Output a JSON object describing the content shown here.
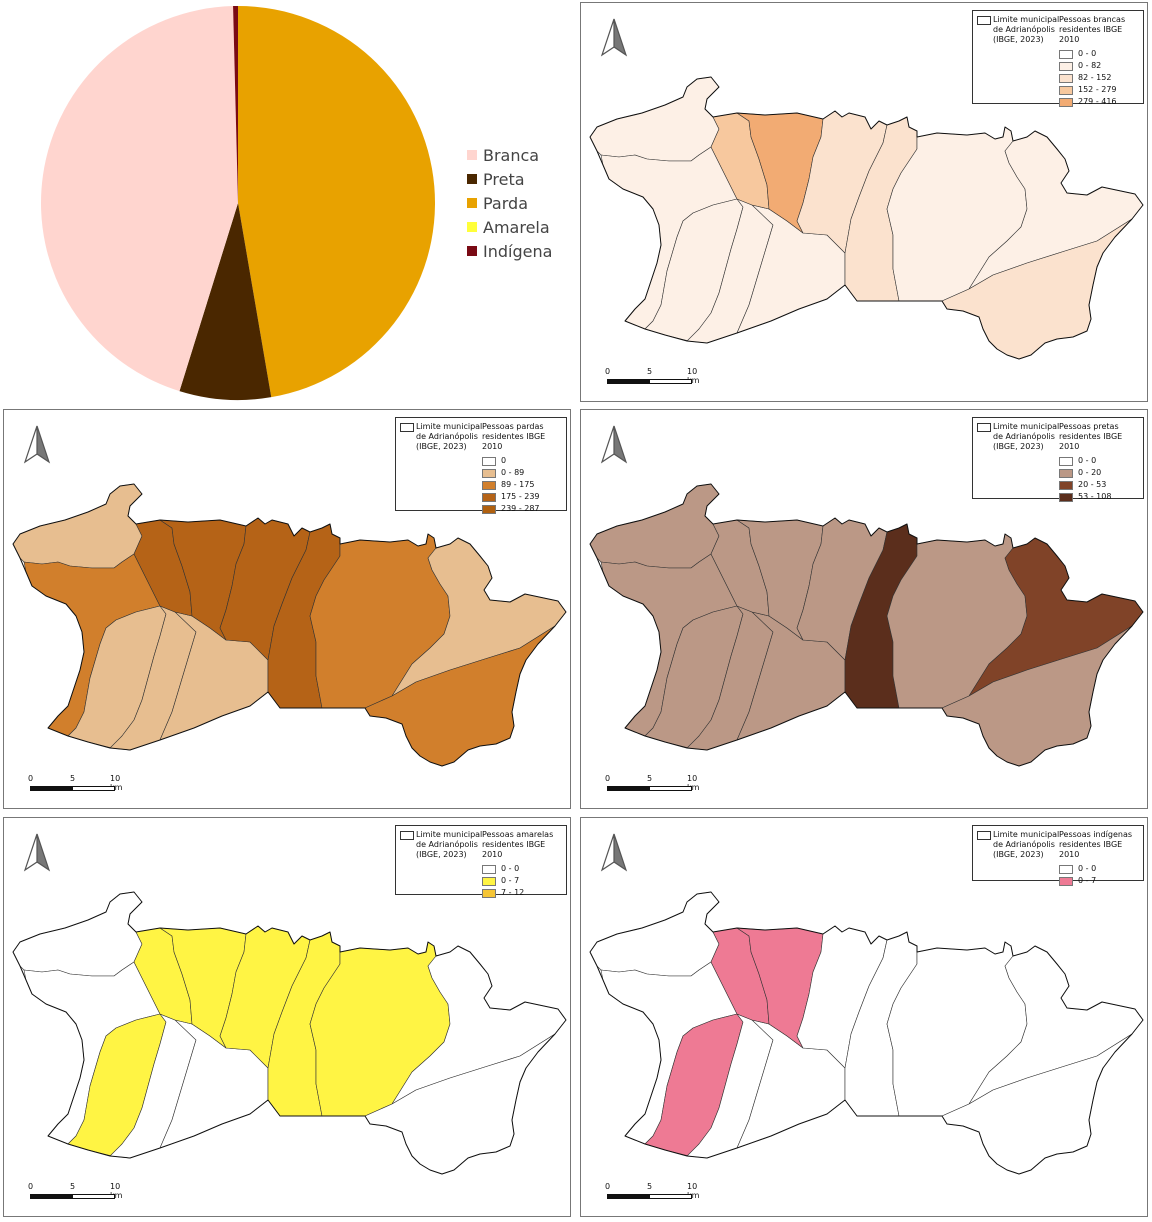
{
  "chart_data": {
    "type": "pie",
    "legend_position": "right",
    "series": [
      {
        "name": "Branca",
        "value": 44.8,
        "color": "#FFD5CF"
      },
      {
        "name": "Preta",
        "value": 7.5,
        "color": "#4A2700"
      },
      {
        "name": "Parda",
        "value": 47.3,
        "color": "#E8A200"
      },
      {
        "name": "Amarela",
        "value": 0.0,
        "color": "#FFFF3A"
      },
      {
        "name": "Indígena",
        "value": 0.4,
        "color": "#7A0A14"
      }
    ]
  },
  "maps": [
    {
      "id": "brancas",
      "limit_label": "Limite municipal\nde Adrianópolis\n(IBGE, 2023)",
      "title": "Pessoas brancas\nresidentes IBGE 2010",
      "classes": [
        {
          "label": "0 - 0",
          "color": "#FFFFFF"
        },
        {
          "label": "0 - 82",
          "color": "#FDF0E6"
        },
        {
          "label": "82 - 152",
          "color": "#FBE2CE"
        },
        {
          "label": "152 - 279",
          "color": "#F7C89E"
        },
        {
          "label": "279 - 416",
          "color": "#F2AB73"
        }
      ],
      "scale": {
        "labels": [
          "0",
          "5",
          "10 km"
        ]
      }
    },
    {
      "id": "pardas",
      "limit_label": "Limite municipal\nde Adrianópolis\n(IBGE, 2023)",
      "title": "Pessoas pardas\nresidentes IBGE 2010",
      "classes": [
        {
          "label": "0",
          "color": "#FFFFFF"
        },
        {
          "label": "0 - 89",
          "color": "#E7BE90"
        },
        {
          "label": "89 - 175",
          "color": "#D17F2C"
        },
        {
          "label": "175 - 239",
          "color": "#B56317"
        },
        {
          "label": "239 - 287",
          "color": "#B0600F"
        }
      ],
      "scale": {
        "labels": [
          "0",
          "5",
          "10 km"
        ]
      }
    },
    {
      "id": "pretas",
      "limit_label": "Limite municipal\nde Adrianópolis\n(IBGE, 2023)",
      "title": "Pessoas pretas\nresidentes IBGE 2010",
      "classes": [
        {
          "label": "0 - 0",
          "color": "#FFFFFF"
        },
        {
          "label": "0 - 20",
          "color": "#BB9886"
        },
        {
          "label": "20 - 53",
          "color": "#804328"
        },
        {
          "label": "53 - 108",
          "color": "#5B2E1C"
        }
      ],
      "scale": {
        "labels": [
          "0",
          "5",
          "10 km"
        ]
      }
    },
    {
      "id": "amarelas",
      "limit_label": "Limite municipal\nde Adrianópolis\n(IBGE, 2023)",
      "title": "Pessoas amarelas\nresidentes IBGE 2010",
      "classes": [
        {
          "label": "0 - 0",
          "color": "#FFFFFF"
        },
        {
          "label": "0 - 7",
          "color": "#FFF444"
        },
        {
          "label": "7 - 12",
          "color": "#F5C535"
        }
      ],
      "scale": {
        "labels": [
          "0",
          "5",
          "10 km"
        ]
      }
    },
    {
      "id": "indigenas",
      "limit_label": "Limite municipal\nde Adrianópolis\n(IBGE, 2023)",
      "title": "Pessoas indígenas\nresidentes IBGE 2010",
      "classes": [
        {
          "label": "0 - 0",
          "color": "#FFFFFF"
        },
        {
          "label": "0 - 7",
          "color": "#EE7A94"
        }
      ],
      "scale": {
        "labels": [
          "0",
          "5",
          "10 km"
        ]
      }
    }
  ]
}
